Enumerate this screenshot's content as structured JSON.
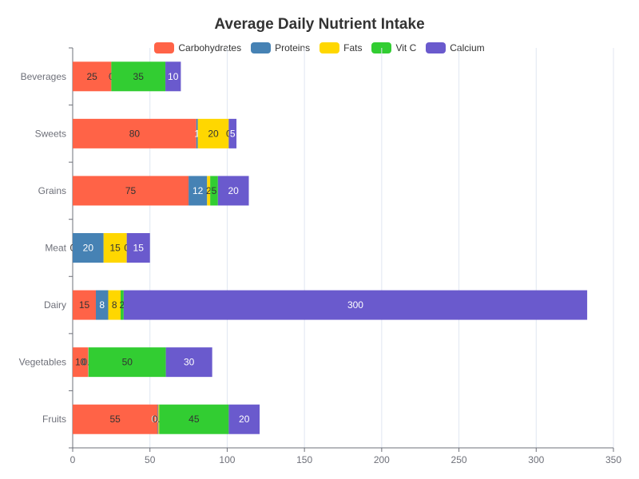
{
  "chart_data": {
    "type": "bar",
    "orientation": "horizontal",
    "stacked": true,
    "title": "Average Daily Nutrient Intake",
    "categories": [
      "Fruits",
      "Vegetables",
      "Dairy",
      "Meat",
      "Grains",
      "Sweets",
      "Beverages"
    ],
    "series": [
      {
        "name": "Carbohydrates",
        "color": "#ff6347",
        "values": [
          55,
          10,
          15,
          0,
          75,
          80,
          25
        ]
      },
      {
        "name": "Proteins",
        "color": "#4682b4",
        "values": [
          0.5,
          0.2,
          8,
          20,
          12,
          1,
          0
        ]
      },
      {
        "name": "Fats",
        "color": "#ffd700",
        "values": [
          0.5,
          0.1,
          8,
          15,
          2,
          20,
          0
        ]
      },
      {
        "name": "Vit C",
        "color": "#32cd32",
        "values": [
          45,
          50,
          2,
          0,
          5,
          0,
          35
        ]
      },
      {
        "name": "Calcium",
        "color": "#6a5acd",
        "values": [
          20,
          30,
          300,
          15,
          20,
          5,
          10
        ]
      }
    ],
    "xlim": [
      0,
      350
    ],
    "xticks": [
      0,
      50,
      100,
      150,
      200,
      250,
      300,
      350
    ],
    "grid": "vertical",
    "legend_position": "top-center"
  }
}
